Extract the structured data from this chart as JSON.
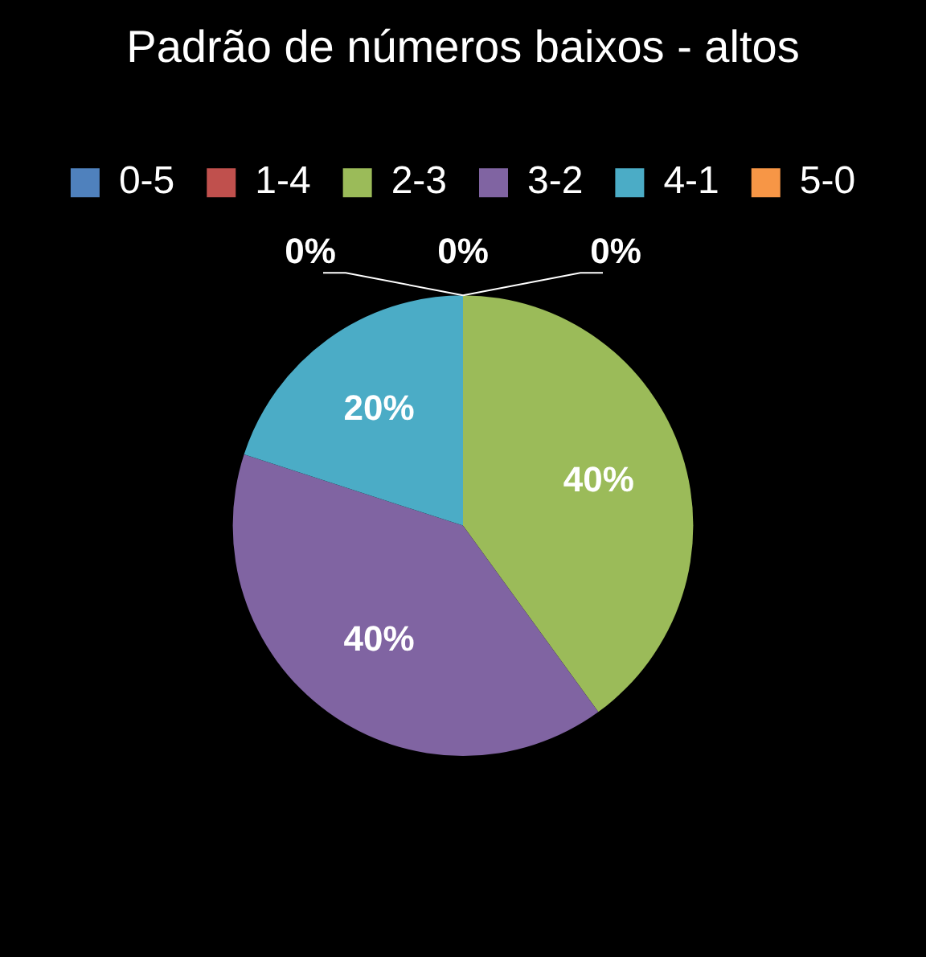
{
  "chart_data": {
    "type": "pie",
    "title": "Padrão de números baixos - altos",
    "categories": [
      "0-5",
      "1-4",
      "2-3",
      "3-2",
      "4-1",
      "5-0"
    ],
    "values": [
      0,
      0,
      40,
      40,
      20,
      0
    ],
    "colors": [
      "#4f81bd",
      "#c0504d",
      "#9bbb59",
      "#8064a2",
      "#4bacc6",
      "#f79646"
    ],
    "value_labels": [
      "0%",
      "0%",
      "40%",
      "40%",
      "20%",
      "0%"
    ],
    "legend": "top"
  }
}
